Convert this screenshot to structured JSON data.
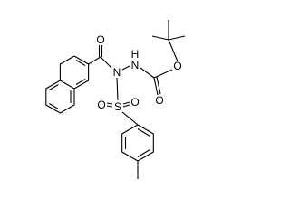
{
  "atoms": [
    {
      "label": "O"
    },
    {
      "label": "N"
    },
    {
      "label": "N"
    },
    {
      "label": "H"
    },
    {
      "label": "O"
    },
    {
      "label": "O"
    },
    {
      "label": "S"
    },
    {
      "label": "O"
    },
    {
      "label": "O"
    }
  ]
}
